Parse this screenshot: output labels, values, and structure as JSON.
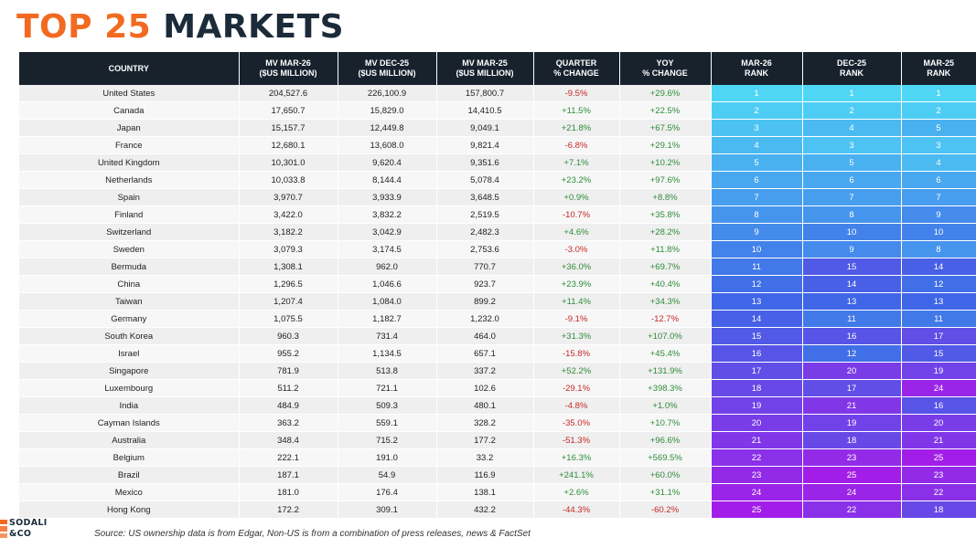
{
  "title": {
    "accent": "TOP 25",
    "main": "MARKETS"
  },
  "headers": [
    "COUNTRY",
    "MV MAR-26\n($US MILLION)",
    "MV DEC-25\n($US MILLION)",
    "MV MAR-25\n($US MILLION)",
    "QUARTER\n% CHANGE",
    "YOY\n% CHANGE",
    "MAR-26\nRANK",
    "DEC-25\nRANK",
    "MAR-25\nRANK"
  ],
  "rows": [
    [
      "United States",
      "204,527.6",
      "226,100.9",
      "157,800.7",
      "-9.5%",
      "+29.6%",
      "1",
      "1",
      "1"
    ],
    [
      "Canada",
      "17,650.7",
      "15,829.0",
      "14,410.5",
      "+11.5%",
      "+22.5%",
      "2",
      "2",
      "2"
    ],
    [
      "Japan",
      "15,157.7",
      "12,449.8",
      "9,049.1",
      "+21.8%",
      "+67.5%",
      "3",
      "4",
      "5"
    ],
    [
      "France",
      "12,680.1",
      "13,608.0",
      "9,821.4",
      "-6.8%",
      "+29.1%",
      "4",
      "3",
      "3"
    ],
    [
      "United Kingdom",
      "10,301.0",
      "9,620.4",
      "9,351.6",
      "+7.1%",
      "+10.2%",
      "5",
      "5",
      "4"
    ],
    [
      "Netherlands",
      "10,033.8",
      "8,144.4",
      "5,078.4",
      "+23.2%",
      "+97.6%",
      "6",
      "6",
      "6"
    ],
    [
      "Spain",
      "3,970.7",
      "3,933.9",
      "3,648.5",
      "+0.9%",
      "+8.8%",
      "7",
      "7",
      "7"
    ],
    [
      "Finland",
      "3,422.0",
      "3,832.2",
      "2,519.5",
      "-10.7%",
      "+35.8%",
      "8",
      "8",
      "9"
    ],
    [
      "Switzerland",
      "3,182.2",
      "3,042.9",
      "2,482.3",
      "+4.6%",
      "+28.2%",
      "9",
      "10",
      "10"
    ],
    [
      "Sweden",
      "3,079.3",
      "3,174.5",
      "2,753.6",
      "-3.0%",
      "+11.8%",
      "10",
      "9",
      "8"
    ],
    [
      "Bermuda",
      "1,308.1",
      "962.0",
      "770.7",
      "+36.0%",
      "+69.7%",
      "11",
      "15",
      "14"
    ],
    [
      "China",
      "1,296.5",
      "1,046.6",
      "923.7",
      "+23.9%",
      "+40.4%",
      "12",
      "14",
      "12"
    ],
    [
      "Taiwan",
      "1,207.4",
      "1,084.0",
      "899.2",
      "+11.4%",
      "+34.3%",
      "13",
      "13",
      "13"
    ],
    [
      "Germany",
      "1,075.5",
      "1,182.7",
      "1,232.0",
      "-9.1%",
      "-12.7%",
      "14",
      "11",
      "11"
    ],
    [
      "South Korea",
      "960.3",
      "731.4",
      "464.0",
      "+31.3%",
      "+107.0%",
      "15",
      "16",
      "17"
    ],
    [
      "Israel",
      "955.2",
      "1,134.5",
      "657.1",
      "-15.8%",
      "+45.4%",
      "16",
      "12",
      "15"
    ],
    [
      "Singapore",
      "781.9",
      "513.8",
      "337.2",
      "+52.2%",
      "+131.9%",
      "17",
      "20",
      "19"
    ],
    [
      "Luxembourg",
      "511.2",
      "721.1",
      "102.6",
      "-29.1%",
      "+398.3%",
      "18",
      "17",
      "24"
    ],
    [
      "India",
      "484.9",
      "509.3",
      "480.1",
      "-4.8%",
      "+1.0%",
      "19",
      "21",
      "16"
    ],
    [
      "Cayman Islands",
      "363.2",
      "559.1",
      "328.2",
      "-35.0%",
      "+10.7%",
      "20",
      "19",
      "20"
    ],
    [
      "Australia",
      "348.4",
      "715.2",
      "177.2",
      "-51.3%",
      "+96.6%",
      "21",
      "18",
      "21"
    ],
    [
      "Belgium",
      "222.1",
      "191.0",
      "33.2",
      "+16.3%",
      "+569.5%",
      "22",
      "23",
      "25"
    ],
    [
      "Brazil",
      "187.1",
      "54.9",
      "116.9",
      "+241.1%",
      "+60.0%",
      "23",
      "25",
      "23"
    ],
    [
      "Mexico",
      "181.0",
      "176.4",
      "138.1",
      "+2.6%",
      "+31.1%",
      "24",
      "24",
      "22"
    ],
    [
      "Hong Kong",
      "172.2",
      "309.1",
      "432.2",
      "-44.3%",
      "-60.2%",
      "25",
      "22",
      "18"
    ]
  ],
  "colors": {
    "accent": "#f26a21",
    "header_bg": "#17222d",
    "negative": "#c62828",
    "positive": "#2e8b3a",
    "rank_gradient_start": "#4fd6f5",
    "rank_gradient_mid": "#3f66e6",
    "rank_gradient_end": "#a21ee8"
  },
  "logo": {
    "line1": "SODALI",
    "line2": "&CO",
    "icon": "sodali-logo-icon"
  },
  "source": "Source: US ownership data is from Edgar, Non-US is from a combination of press releases, news & FactSet"
}
